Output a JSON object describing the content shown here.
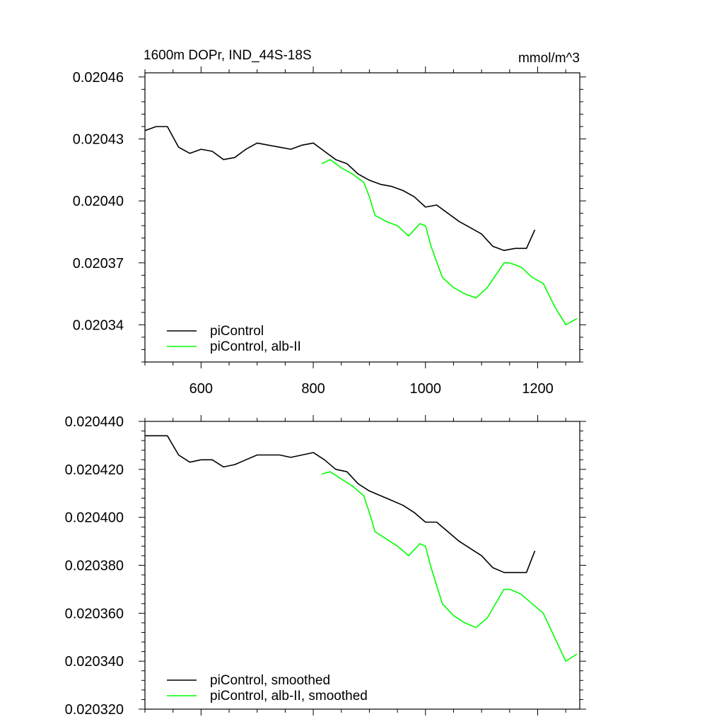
{
  "figure": {
    "title_left": "1600m DOPr, IND_44S-18S",
    "title_right": "mmol/m^3"
  },
  "chart_data": [
    {
      "type": "line",
      "title": "1600m DOPr, IND_44S-18S",
      "units": "mmol/m^3",
      "xlim": [
        500,
        1275
      ],
      "ylim": [
        0.020322,
        0.020462
      ],
      "x_ticks": [
        600,
        800,
        1000,
        1200
      ],
      "x_tick_labels": [
        "600",
        "800",
        "1000",
        "1200"
      ],
      "y_ticks": [
        0.02046,
        0.02043,
        0.0204,
        0.02037,
        0.02034
      ],
      "y_tick_labels": [
        "0.02046",
        "0.02043",
        "0.02040",
        "0.02037",
        "0.02034"
      ],
      "legend_position": "bottom-left",
      "series": [
        {
          "name": "piControl",
          "color": "#000000",
          "x": [
            500,
            520,
            540,
            560,
            580,
            600,
            620,
            640,
            660,
            680,
            700,
            720,
            740,
            760,
            780,
            800,
            820,
            840,
            860,
            880,
            900,
            920,
            940,
            960,
            980,
            1000,
            1020,
            1040,
            1060,
            1080,
            1100,
            1120,
            1140,
            1160,
            1180,
            1195
          ],
          "y": [
            0.020434,
            0.020436,
            0.020436,
            0.020426,
            0.020423,
            0.020425,
            0.020424,
            0.02042,
            0.020421,
            0.020425,
            0.020428,
            0.020427,
            0.020426,
            0.020425,
            0.020427,
            0.020428,
            0.020424,
            0.02042,
            0.020418,
            0.020413,
            0.02041,
            0.020408,
            0.020407,
            0.020405,
            0.020402,
            0.020397,
            0.020398,
            0.020394,
            0.02039,
            0.020387,
            0.020384,
            0.020378,
            0.020376,
            0.020377,
            0.020377,
            0.020386
          ]
        },
        {
          "name": "piControl, alb-II",
          "color": "#00ff00",
          "x": [
            815,
            830,
            850,
            870,
            890,
            900,
            910,
            930,
            950,
            970,
            990,
            1000,
            1010,
            1030,
            1050,
            1070,
            1090,
            1110,
            1130,
            1140,
            1150,
            1170,
            1190,
            1210,
            1230,
            1250,
            1270
          ],
          "y": [
            0.020418,
            0.02042,
            0.020416,
            0.020413,
            0.020409,
            0.020402,
            0.020393,
            0.02039,
            0.020388,
            0.020383,
            0.020389,
            0.020388,
            0.020378,
            0.020363,
            0.020358,
            0.020355,
            0.020353,
            0.020358,
            0.020366,
            0.02037,
            0.02037,
            0.020368,
            0.020363,
            0.02036,
            0.020349,
            0.02034,
            0.020343
          ]
        }
      ]
    },
    {
      "type": "line",
      "xlim": [
        500,
        1275
      ],
      "ylim": [
        0.02032,
        0.02044
      ],
      "x_ticks": [
        600,
        800,
        1000,
        1200
      ],
      "y_ticks": [
        0.02044,
        0.02042,
        0.0204,
        0.02038,
        0.02036,
        0.02034,
        0.02032
      ],
      "y_tick_labels": [
        "0.020440",
        "0.020420",
        "0.020400",
        "0.020380",
        "0.020360",
        "0.020340",
        "0.020320"
      ],
      "legend_position": "bottom-left",
      "series": [
        {
          "name": "piControl, smoothed",
          "color": "#000000",
          "x": [
            500,
            520,
            540,
            560,
            580,
            600,
            620,
            640,
            660,
            680,
            700,
            720,
            740,
            760,
            780,
            800,
            820,
            840,
            860,
            880,
            900,
            920,
            940,
            960,
            980,
            1000,
            1020,
            1040,
            1060,
            1080,
            1100,
            1120,
            1140,
            1160,
            1180,
            1195
          ],
          "y": [
            0.020434,
            0.020434,
            0.020434,
            0.020426,
            0.020423,
            0.020424,
            0.020424,
            0.020421,
            0.020422,
            0.020424,
            0.020426,
            0.020426,
            0.020426,
            0.020425,
            0.020426,
            0.020427,
            0.020424,
            0.02042,
            0.020419,
            0.020414,
            0.020411,
            0.020409,
            0.020407,
            0.020405,
            0.020402,
            0.020398,
            0.020398,
            0.020394,
            0.02039,
            0.020387,
            0.020384,
            0.020379,
            0.020377,
            0.020377,
            0.020377,
            0.020386
          ]
        },
        {
          "name": "piControl, alb-II, smoothed",
          "color": "#00ff00",
          "x": [
            815,
            830,
            850,
            870,
            890,
            900,
            910,
            930,
            950,
            970,
            990,
            1000,
            1010,
            1030,
            1050,
            1070,
            1090,
            1110,
            1130,
            1140,
            1150,
            1170,
            1190,
            1210,
            1230,
            1250,
            1270
          ],
          "y": [
            0.020418,
            0.020419,
            0.020416,
            0.020413,
            0.020409,
            0.020402,
            0.020394,
            0.020391,
            0.020388,
            0.020384,
            0.020389,
            0.020388,
            0.020379,
            0.020364,
            0.020359,
            0.020356,
            0.020354,
            0.020358,
            0.020366,
            0.02037,
            0.02037,
            0.020368,
            0.020364,
            0.02036,
            0.02035,
            0.02034,
            0.020343
          ]
        }
      ]
    }
  ]
}
